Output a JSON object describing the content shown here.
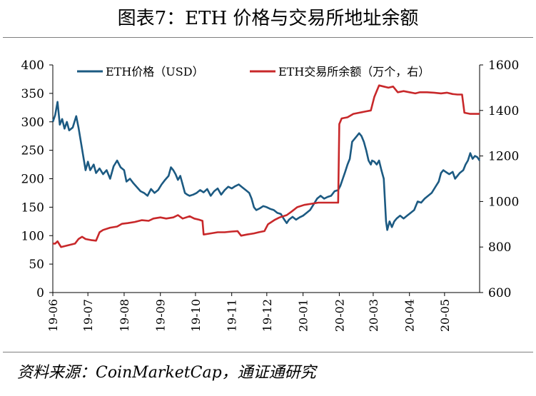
{
  "title": "图表7：ETH 价格与交易所地址余额",
  "source": "资料来源：CoinMarketCap，通证通研究",
  "colors": {
    "price": "#1c5a82",
    "balance": "#c8282a"
  },
  "chart_data": {
    "type": "line",
    "title": "图表7：ETH 价格与交易所地址余额",
    "x_type": "date",
    "x_range": [
      "2019-06-01",
      "2020-05-31"
    ],
    "x_ticks": [
      "19-06",
      "19-07",
      "19-08",
      "19-09",
      "19-10",
      "19-11",
      "19-12",
      "20-01",
      "20-02",
      "20-03",
      "20-04",
      "20-05"
    ],
    "x_tick_dates": [
      "2019-06-01",
      "2019-07-01",
      "2019-08-01",
      "2019-09-01",
      "2019-10-01",
      "2019-11-01",
      "2019-12-01",
      "2020-01-01",
      "2020-02-01",
      "2020-03-01",
      "2020-04-01",
      "2020-05-01"
    ],
    "y_left": {
      "min": 0,
      "max": 400,
      "ticks": [
        0,
        50,
        100,
        150,
        200,
        250,
        300,
        350,
        400
      ]
    },
    "y_right": {
      "min": 600,
      "max": 1600,
      "ticks": [
        600,
        800,
        1000,
        1200,
        1400,
        1600
      ]
    },
    "legend_position": "top",
    "grid": false,
    "series": [
      {
        "name": "ETH价格（USD）",
        "axis": "left",
        "color": "#1c5a82",
        "points": [
          [
            "2019-06-01",
            300
          ],
          [
            "2019-06-03",
            312
          ],
          [
            "2019-06-05",
            335
          ],
          [
            "2019-06-07",
            295
          ],
          [
            "2019-06-09",
            305
          ],
          [
            "2019-06-11",
            288
          ],
          [
            "2019-06-13",
            300
          ],
          [
            "2019-06-15",
            285
          ],
          [
            "2019-06-18",
            290
          ],
          [
            "2019-06-21",
            310
          ],
          [
            "2019-06-23",
            290
          ],
          [
            "2019-06-25",
            265
          ],
          [
            "2019-06-27",
            240
          ],
          [
            "2019-06-29",
            215
          ],
          [
            "2019-07-01",
            230
          ],
          [
            "2019-07-03",
            215
          ],
          [
            "2019-07-06",
            225
          ],
          [
            "2019-07-08",
            210
          ],
          [
            "2019-07-11",
            218
          ],
          [
            "2019-07-14",
            208
          ],
          [
            "2019-07-17",
            215
          ],
          [
            "2019-07-20",
            200
          ],
          [
            "2019-07-23",
            222
          ],
          [
            "2019-07-26",
            232
          ],
          [
            "2019-07-29",
            220
          ],
          [
            "2019-08-01",
            215
          ],
          [
            "2019-08-03",
            195
          ],
          [
            "2019-08-06",
            200
          ],
          [
            "2019-08-09",
            192
          ],
          [
            "2019-08-12",
            185
          ],
          [
            "2019-08-15",
            178
          ],
          [
            "2019-08-18",
            175
          ],
          [
            "2019-08-21",
            170
          ],
          [
            "2019-08-24",
            182
          ],
          [
            "2019-08-27",
            175
          ],
          [
            "2019-08-30",
            180
          ],
          [
            "2019-09-02",
            190
          ],
          [
            "2019-09-05",
            198
          ],
          [
            "2019-09-08",
            205
          ],
          [
            "2019-09-10",
            220
          ],
          [
            "2019-09-12",
            215
          ],
          [
            "2019-09-14",
            208
          ],
          [
            "2019-09-16",
            198
          ],
          [
            "2019-09-18",
            205
          ],
          [
            "2019-09-20",
            190
          ],
          [
            "2019-09-22",
            175
          ],
          [
            "2019-09-24",
            172
          ],
          [
            "2019-09-26",
            170
          ],
          [
            "2019-09-29",
            172
          ],
          [
            "2019-10-02",
            175
          ],
          [
            "2019-10-05",
            180
          ],
          [
            "2019-10-08",
            176
          ],
          [
            "2019-10-11",
            182
          ],
          [
            "2019-10-14",
            170
          ],
          [
            "2019-10-17",
            178
          ],
          [
            "2019-10-20",
            183
          ],
          [
            "2019-10-23",
            172
          ],
          [
            "2019-10-26",
            180
          ],
          [
            "2019-10-29",
            186
          ],
          [
            "2019-11-01",
            183
          ],
          [
            "2019-11-04",
            187
          ],
          [
            "2019-11-07",
            190
          ],
          [
            "2019-11-10",
            185
          ],
          [
            "2019-11-13",
            180
          ],
          [
            "2019-11-16",
            175
          ],
          [
            "2019-11-18",
            165
          ],
          [
            "2019-11-20",
            150
          ],
          [
            "2019-11-22",
            145
          ],
          [
            "2019-11-25",
            148
          ],
          [
            "2019-11-28",
            152
          ],
          [
            "2019-12-01",
            150
          ],
          [
            "2019-12-04",
            147
          ],
          [
            "2019-12-07",
            145
          ],
          [
            "2019-12-10",
            140
          ],
          [
            "2019-12-13",
            138
          ],
          [
            "2019-12-16",
            128
          ],
          [
            "2019-12-18",
            122
          ],
          [
            "2019-12-20",
            128
          ],
          [
            "2019-12-23",
            133
          ],
          [
            "2019-12-26",
            128
          ],
          [
            "2019-12-29",
            132
          ],
          [
            "2020-01-01",
            135
          ],
          [
            "2020-01-04",
            140
          ],
          [
            "2020-01-07",
            145
          ],
          [
            "2020-01-10",
            155
          ],
          [
            "2020-01-13",
            165
          ],
          [
            "2020-01-16",
            170
          ],
          [
            "2020-01-19",
            165
          ],
          [
            "2020-01-22",
            168
          ],
          [
            "2020-01-25",
            170
          ],
          [
            "2020-01-28",
            178
          ],
          [
            "2020-01-31",
            180
          ],
          [
            "2020-02-02",
            188
          ],
          [
            "2020-02-04",
            200
          ],
          [
            "2020-02-06",
            212
          ],
          [
            "2020-02-08",
            225
          ],
          [
            "2020-02-10",
            235
          ],
          [
            "2020-02-12",
            265
          ],
          [
            "2020-02-14",
            270
          ],
          [
            "2020-02-16",
            275
          ],
          [
            "2020-02-18",
            280
          ],
          [
            "2020-02-20",
            275
          ],
          [
            "2020-02-22",
            265
          ],
          [
            "2020-02-24",
            250
          ],
          [
            "2020-02-26",
            232
          ],
          [
            "2020-02-28",
            225
          ],
          [
            "2020-02-29",
            232
          ],
          [
            "2020-03-02",
            230
          ],
          [
            "2020-03-04",
            225
          ],
          [
            "2020-03-06",
            232
          ],
          [
            "2020-03-08",
            215
          ],
          [
            "2020-03-10",
            200
          ],
          [
            "2020-03-12",
            125
          ],
          [
            "2020-03-13",
            110
          ],
          [
            "2020-03-15",
            125
          ],
          [
            "2020-03-17",
            115
          ],
          [
            "2020-03-19",
            125
          ],
          [
            "2020-03-21",
            130
          ],
          [
            "2020-03-24",
            135
          ],
          [
            "2020-03-27",
            130
          ],
          [
            "2020-03-30",
            135
          ],
          [
            "2020-04-02",
            140
          ],
          [
            "2020-04-05",
            145
          ],
          [
            "2020-04-08",
            160
          ],
          [
            "2020-04-11",
            158
          ],
          [
            "2020-04-14",
            165
          ],
          [
            "2020-04-17",
            170
          ],
          [
            "2020-04-20",
            175
          ],
          [
            "2020-04-23",
            185
          ],
          [
            "2020-04-26",
            195
          ],
          [
            "2020-04-28",
            210
          ],
          [
            "2020-04-30",
            215
          ],
          [
            "2020-05-02",
            212
          ],
          [
            "2020-05-05",
            208
          ],
          [
            "2020-05-08",
            212
          ],
          [
            "2020-05-10",
            200
          ],
          [
            "2020-05-12",
            205
          ],
          [
            "2020-05-14",
            210
          ],
          [
            "2020-05-17",
            215
          ],
          [
            "2020-05-19",
            225
          ],
          [
            "2020-05-21",
            232
          ],
          [
            "2020-05-23",
            245
          ],
          [
            "2020-05-25",
            235
          ],
          [
            "2020-05-27",
            240
          ],
          [
            "2020-05-29",
            238
          ],
          [
            "2020-05-31",
            232
          ]
        ]
      },
      {
        "name": "ETH交易所余额（万个，右）",
        "axis": "right",
        "color": "#c8282a",
        "points": [
          [
            "2019-06-01",
            815
          ],
          [
            "2019-06-03",
            815
          ],
          [
            "2019-06-05",
            825
          ],
          [
            "2019-06-08",
            800
          ],
          [
            "2019-06-12",
            805
          ],
          [
            "2019-06-16",
            810
          ],
          [
            "2019-06-20",
            815
          ],
          [
            "2019-06-23",
            835
          ],
          [
            "2019-06-26",
            845
          ],
          [
            "2019-06-29",
            835
          ],
          [
            "2019-07-04",
            830
          ],
          [
            "2019-07-08",
            828
          ],
          [
            "2019-07-11",
            865
          ],
          [
            "2019-07-14",
            875
          ],
          [
            "2019-07-20",
            885
          ],
          [
            "2019-07-26",
            890
          ],
          [
            "2019-07-30",
            902
          ],
          [
            "2019-08-04",
            905
          ],
          [
            "2019-08-10",
            910
          ],
          [
            "2019-08-16",
            918
          ],
          [
            "2019-08-22",
            915
          ],
          [
            "2019-08-26",
            925
          ],
          [
            "2019-09-01",
            930
          ],
          [
            "2019-09-06",
            925
          ],
          [
            "2019-09-12",
            930
          ],
          [
            "2019-09-16",
            940
          ],
          [
            "2019-09-20",
            925
          ],
          [
            "2019-09-26",
            935
          ],
          [
            "2019-09-30",
            925
          ],
          [
            "2019-10-04",
            920
          ],
          [
            "2019-10-07",
            915
          ],
          [
            "2019-10-08",
            855
          ],
          [
            "2019-10-14",
            860
          ],
          [
            "2019-10-20",
            865
          ],
          [
            "2019-10-26",
            865
          ],
          [
            "2019-11-01",
            868
          ],
          [
            "2019-11-06",
            870
          ],
          [
            "2019-11-09",
            850
          ],
          [
            "2019-11-14",
            855
          ],
          [
            "2019-11-20",
            860
          ],
          [
            "2019-11-24",
            865
          ],
          [
            "2019-11-29",
            870
          ],
          [
            "2019-12-02",
            900
          ],
          [
            "2019-12-08",
            920
          ],
          [
            "2019-12-12",
            930
          ],
          [
            "2019-12-18",
            940
          ],
          [
            "2019-12-22",
            955
          ],
          [
            "2019-12-27",
            975
          ],
          [
            "2020-01-02",
            985
          ],
          [
            "2020-01-08",
            990
          ],
          [
            "2020-01-14",
            995
          ],
          [
            "2020-01-20",
            995
          ],
          [
            "2020-01-26",
            995
          ],
          [
            "2020-01-31",
            995
          ],
          [
            "2020-02-01",
            1340
          ],
          [
            "2020-02-03",
            1365
          ],
          [
            "2020-02-08",
            1370
          ],
          [
            "2020-02-13",
            1385
          ],
          [
            "2020-02-18",
            1390
          ],
          [
            "2020-02-23",
            1395
          ],
          [
            "2020-02-28",
            1400
          ],
          [
            "2020-03-02",
            1460
          ],
          [
            "2020-03-06",
            1510
          ],
          [
            "2020-03-10",
            1505
          ],
          [
            "2020-03-14",
            1500
          ],
          [
            "2020-03-18",
            1505
          ],
          [
            "2020-03-22",
            1480
          ],
          [
            "2020-03-27",
            1485
          ],
          [
            "2020-04-01",
            1480
          ],
          [
            "2020-04-06",
            1475
          ],
          [
            "2020-04-10",
            1480
          ],
          [
            "2020-04-16",
            1480
          ],
          [
            "2020-04-22",
            1478
          ],
          [
            "2020-04-28",
            1475
          ],
          [
            "2020-05-03",
            1478
          ],
          [
            "2020-05-08",
            1472
          ],
          [
            "2020-05-12",
            1470
          ],
          [
            "2020-05-16",
            1470
          ],
          [
            "2020-05-18",
            1390
          ],
          [
            "2020-05-23",
            1385
          ],
          [
            "2020-05-31",
            1385
          ]
        ]
      }
    ]
  }
}
